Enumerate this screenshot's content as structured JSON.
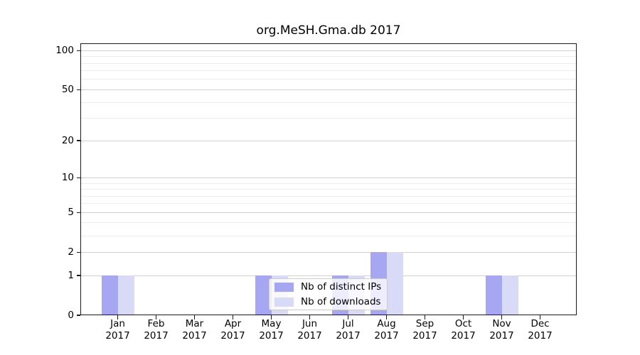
{
  "title": "org.MeSH.Gma.db 2017",
  "chart_data": {
    "type": "bar",
    "title": "org.MeSH.Gma.db 2017",
    "categories": [
      "Jan",
      "Feb",
      "Mar",
      "Apr",
      "May",
      "Jun",
      "Jul",
      "Aug",
      "Sep",
      "Oct",
      "Nov",
      "Dec"
    ],
    "x_tick_year": "2017",
    "series": [
      {
        "name": "Nb of distinct IPs",
        "color": "#a6a6f2",
        "values": [
          1,
          0,
          0,
          0,
          1,
          0,
          1,
          2,
          0,
          0,
          1,
          0
        ]
      },
      {
        "name": "Nb of downloads",
        "color": "#d9d9f8",
        "values": [
          1,
          0,
          0,
          0,
          1,
          0,
          1,
          2,
          0,
          0,
          1,
          0
        ]
      }
    ],
    "yscale": "log1p",
    "y_major_ticks": [
      0,
      1,
      2,
      5,
      10,
      20,
      50,
      100
    ],
    "y_minor_gridlines": [
      3,
      4,
      6,
      7,
      8,
      9,
      30,
      40,
      60,
      70,
      80,
      90
    ],
    "ylim": [
      0,
      112
    ],
    "grid": true,
    "legend_position": "lower center",
    "colors": {
      "major_grid": "#d0d0d0",
      "minor_grid": "#ececec",
      "axis": "#1a1a1a",
      "background": "#ffffff"
    }
  }
}
